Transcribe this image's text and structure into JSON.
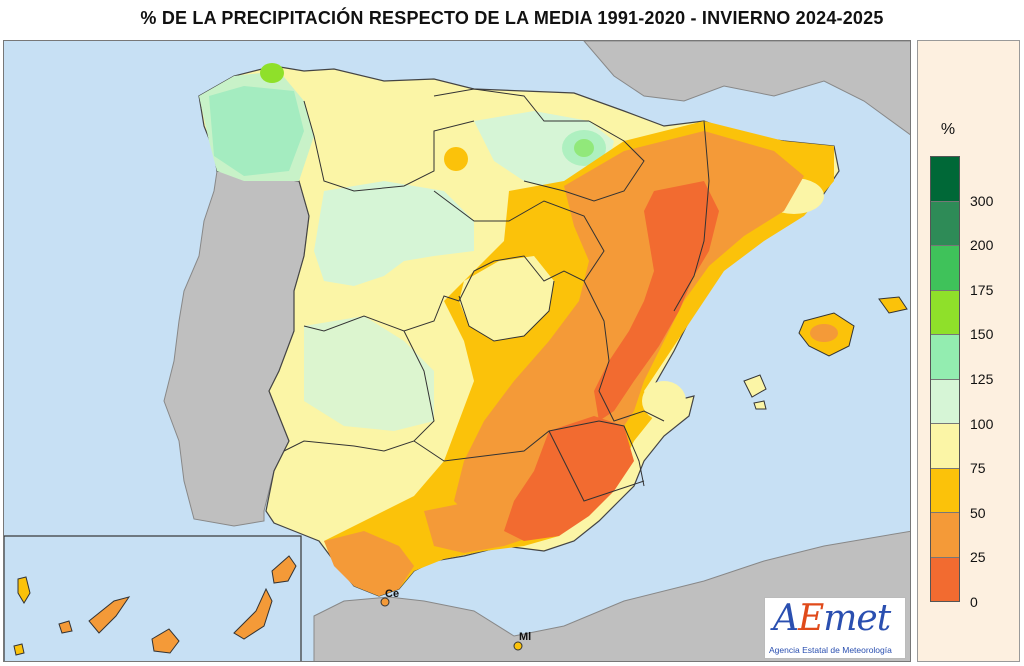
{
  "title": "% DE LA PRECIPITACIÓN RESPECTO DE LA MEDIA 1991-2020 - INVIERNO 2024-2025",
  "legend": {
    "unit": "%",
    "bins": [
      {
        "label": "300",
        "color": "#006837"
      },
      {
        "label": "200",
        "color": "#2e8b57"
      },
      {
        "label": "175",
        "color": "#3fc25a"
      },
      {
        "label": "150",
        "color": "#8fe02a"
      },
      {
        "label": "125",
        "color": "#93edb0"
      },
      {
        "label": "100",
        "color": "#d6f5d6"
      },
      {
        "label": "75",
        "color": "#fbf5a6"
      },
      {
        "label": "50",
        "color": "#fbc20a"
      },
      {
        "label": "25",
        "color": "#f49a38"
      },
      {
        "label": "0",
        "color": "#f26b30"
      }
    ]
  },
  "map": {
    "sea_color": "#c7e0f4",
    "land_outside_color": "#bfbfbf",
    "cities": [
      {
        "name": "Ce"
      },
      {
        "name": "Ml"
      }
    ]
  },
  "logo": {
    "text_a": "A",
    "text_e": "E",
    "text_rest": "met",
    "subtitle": "Agencia Estatal de Meteorología"
  }
}
